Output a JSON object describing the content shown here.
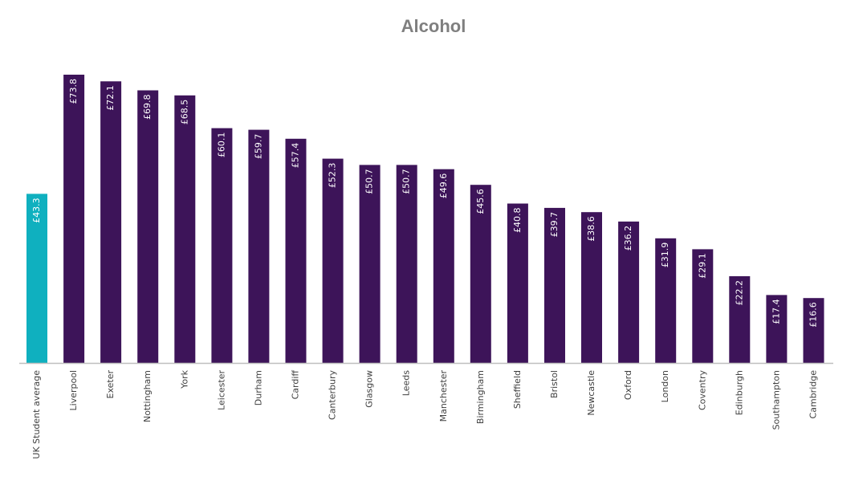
{
  "chart_data": {
    "type": "bar",
    "title": "Alcohol",
    "categories": [
      "UK Student average",
      "Liverpool",
      "Exeter",
      "Nottingham",
      "York",
      "Leicester",
      "Durham",
      "Cardiff",
      "Canterbury",
      "Glasgow",
      "Leeds",
      "Manchester",
      "Birmingham",
      "Sheffield",
      "Bristol",
      "Newcastle",
      "Oxford",
      "London",
      "Coventry",
      "Edinburgh",
      "Southampton",
      "Cambridge"
    ],
    "values": [
      43.3,
      73.8,
      72.1,
      69.8,
      68.5,
      60.1,
      59.7,
      57.4,
      52.3,
      50.7,
      50.7,
      49.6,
      45.6,
      40.8,
      39.7,
      38.6,
      36.2,
      31.9,
      29.1,
      22.2,
      17.4,
      16.6
    ],
    "data_labels": [
      "£43.3",
      "£73.8",
      "£72.1",
      "£69.8",
      "£68.5",
      "£60.1",
      "£59.7",
      "£57.4",
      "£52.3",
      "£50.7",
      "£50.7",
      "£49.6",
      "£45.6",
      "£40.8",
      "£39.7",
      "£38.6",
      "£36.2",
      "£31.9",
      "£29.1",
      "£22.2",
      "£17.4",
      "£16.6"
    ],
    "highlight_index": 0,
    "ylim": [
      0,
      74
    ],
    "grid": false,
    "legend": "none",
    "xlabel": "",
    "ylabel": ""
  },
  "colors": {
    "bar": "#3d1459",
    "highlight": "#0fb0bf",
    "axis": "#bfbfbf",
    "title": "#7f7f7f",
    "label": "#404040"
  }
}
